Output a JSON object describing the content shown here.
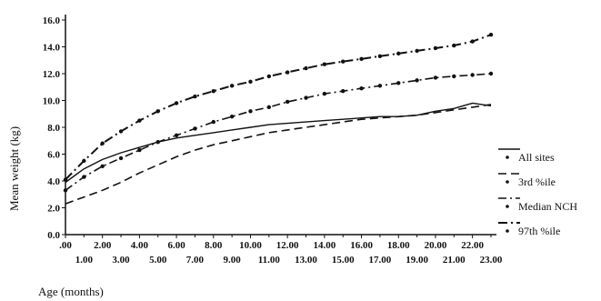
{
  "chart_data": {
    "type": "line",
    "title": "",
    "xlabel": "Age (months)",
    "ylabel": "Mean weight (kg)",
    "xlim": [
      0,
      23
    ],
    "ylim": [
      0,
      16
    ],
    "x_tick_labels_upper": [
      ".00",
      "2.00",
      "4.00",
      "6.00",
      "8.00",
      "10.00",
      "12.00",
      "14.00",
      "16.00",
      "18.00",
      "20.00",
      "22.00"
    ],
    "x_tick_labels_lower": [
      "1.00",
      "3.00",
      "5.00",
      "7.00",
      "9.00",
      "11.00",
      "13.00",
      "15.00",
      "17.00",
      "19.00",
      "21.00",
      "23.00"
    ],
    "y_tick_labels": [
      "0.0",
      "2.0",
      "4.0",
      "6.0",
      "8.0",
      "10.0",
      "12.0",
      "14.0",
      "16.0"
    ],
    "legend_position": "right",
    "x": [
      0,
      1,
      2,
      3,
      4,
      5,
      6,
      7,
      8,
      9,
      10,
      11,
      12,
      13,
      14,
      15,
      16,
      17,
      18,
      19,
      20,
      21,
      22,
      23
    ],
    "series": [
      {
        "name": "All sites",
        "style": "solid",
        "values": [
          3.9,
          4.9,
          5.6,
          6.1,
          6.5,
          6.9,
          7.2,
          7.4,
          7.6,
          7.8,
          8.0,
          8.2,
          8.3,
          8.4,
          8.5,
          8.6,
          8.7,
          8.8,
          8.8,
          8.9,
          9.2,
          9.4,
          9.8,
          9.6
        ]
      },
      {
        "name": "3rd %ile",
        "style": "dash",
        "values": [
          2.3,
          2.8,
          3.3,
          3.9,
          4.6,
          5.2,
          5.8,
          6.3,
          6.7,
          7.0,
          7.3,
          7.6,
          7.8,
          8.0,
          8.2,
          8.4,
          8.6,
          8.7,
          8.8,
          8.9,
          9.1,
          9.3,
          9.5,
          9.7
        ]
      },
      {
        "name": "Median NCH",
        "style": "dashdot",
        "values": [
          3.3,
          4.3,
          5.1,
          5.7,
          6.3,
          6.9,
          7.4,
          7.9,
          8.4,
          8.8,
          9.2,
          9.5,
          9.9,
          10.2,
          10.5,
          10.7,
          10.9,
          11.1,
          11.3,
          11.5,
          11.7,
          11.8,
          11.9,
          12.0
        ]
      },
      {
        "name": "97th %ile",
        "style": "dashdot-heavy",
        "values": [
          4.1,
          5.5,
          6.8,
          7.7,
          8.5,
          9.2,
          9.8,
          10.3,
          10.7,
          11.1,
          11.4,
          11.8,
          12.1,
          12.4,
          12.7,
          12.9,
          13.1,
          13.3,
          13.5,
          13.7,
          13.9,
          14.1,
          14.4,
          14.9
        ]
      }
    ]
  }
}
